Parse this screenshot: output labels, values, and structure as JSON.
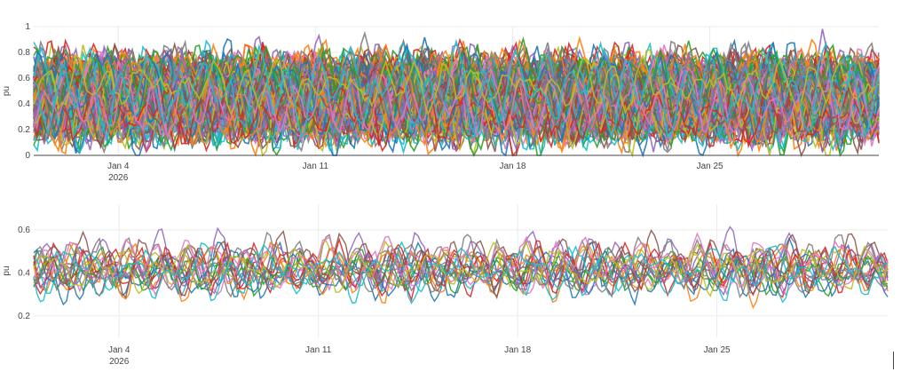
{
  "chart_data": [
    {
      "type": "line",
      "title": "",
      "xlabel": "",
      "ylabel": "pu",
      "x_range": [
        "2026-01-01",
        "2026-01-31"
      ],
      "ylim": [
        0,
        1
      ],
      "y_ticks": [
        0,
        0.2,
        0.4,
        0.6,
        0.8,
        1
      ],
      "y_tick_labels": [
        "0",
        "0.2",
        "0.4",
        "0.6",
        "0.8",
        "1"
      ],
      "x_ticks": [
        "2026-01-04",
        "2026-01-11",
        "2026-01-18",
        "2026-01-25"
      ],
      "x_tick_labels": [
        "Jan 4",
        "Jan 11",
        "Jan 18",
        "Jan 25"
      ],
      "x_tick_sublabel": "2026",
      "grid": true,
      "legend": "none",
      "series_count": 200,
      "value_mean": 0.45,
      "value_spread": 0.2,
      "colors": [
        "#1f77b4",
        "#ff7f0e",
        "#2ca02c",
        "#d62728",
        "#9467bd",
        "#8c564b",
        "#e377c2",
        "#7f7f7f",
        "#bcbd22",
        "#17becf"
      ]
    },
    {
      "type": "line",
      "title": "",
      "xlabel": "",
      "ylabel": "pu",
      "x_range": [
        "2026-01-01",
        "2026-01-31"
      ],
      "ylim": [
        0.1,
        0.72
      ],
      "y_ticks": [
        0.2,
        0.4,
        0.6
      ],
      "y_tick_labels": [
        "0.2",
        "0.4",
        "0.6"
      ],
      "x_ticks": [
        "2026-01-04",
        "2026-01-11",
        "2026-01-18",
        "2026-01-25"
      ],
      "x_tick_labels": [
        "Jan 4",
        "Jan 11",
        "Jan 18",
        "Jan 25"
      ],
      "x_tick_sublabel": "2026",
      "grid": true,
      "legend": "none",
      "series_count": 20,
      "value_mean": 0.42,
      "value_spread": 0.08,
      "colors": [
        "#1f77b4",
        "#ff7f0e",
        "#2ca02c",
        "#d62728",
        "#9467bd",
        "#8c564b",
        "#e377c2",
        "#7f7f7f",
        "#bcbd22",
        "#17becf"
      ]
    }
  ]
}
